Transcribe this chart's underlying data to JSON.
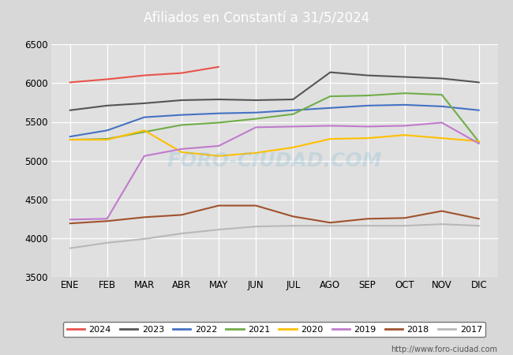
{
  "title": "Afiliados en Constantí a 31/5/2024",
  "title_bg_color": "#4472c4",
  "title_text_color": "white",
  "months": [
    "ENE",
    "FEB",
    "MAR",
    "ABR",
    "MAY",
    "JUN",
    "JUL",
    "AGO",
    "SEP",
    "OCT",
    "NOV",
    "DIC"
  ],
  "ylim": [
    3500,
    6500
  ],
  "yticks": [
    3500,
    4000,
    4500,
    5000,
    5500,
    6000,
    6500
  ],
  "watermark": "http://www.foro-ciudad.com",
  "series": {
    "2024": {
      "color": "#e8534a",
      "data": [
        6010,
        6050,
        6100,
        6130,
        6210,
        null,
        null,
        null,
        null,
        null,
        null,
        null
      ]
    },
    "2023": {
      "color": "#555555",
      "data": [
        5650,
        5710,
        5740,
        5780,
        5790,
        5780,
        5790,
        6140,
        6100,
        6080,
        6060,
        6010
      ]
    },
    "2022": {
      "color": "#4472c4",
      "data": [
        5310,
        5390,
        5560,
        5590,
        5610,
        5620,
        5650,
        5680,
        5710,
        5720,
        5700,
        5650
      ]
    },
    "2021": {
      "color": "#70ad47",
      "data": [
        5270,
        5280,
        5370,
        5460,
        5490,
        5540,
        5600,
        5830,
        5840,
        5870,
        5850,
        5240
      ]
    },
    "2020": {
      "color": "#ffc000",
      "data": [
        5270,
        5270,
        5390,
        5110,
        5060,
        5100,
        5170,
        5280,
        5290,
        5330,
        5290,
        5250
      ]
    },
    "2019": {
      "color": "#c07bcc",
      "data": [
        4240,
        4250,
        5060,
        5150,
        5190,
        5430,
        5440,
        5450,
        5440,
        5450,
        5490,
        5220
      ]
    },
    "2018": {
      "color": "#a0522d",
      "data": [
        4190,
        4220,
        4270,
        4300,
        4420,
        4420,
        4280,
        4200,
        4250,
        4260,
        4350,
        4250
      ]
    },
    "2017": {
      "color": "#b8b8b8",
      "data": [
        3870,
        3940,
        3990,
        4060,
        4110,
        4150,
        4160,
        4160,
        4160,
        4160,
        4180,
        4160
      ]
    }
  },
  "legend_order": [
    "2024",
    "2023",
    "2022",
    "2021",
    "2020",
    "2019",
    "2018",
    "2017"
  ],
  "background_color": "#d8d8d8",
  "plot_bg_color": "#e0e0e0",
  "grid_color": "white"
}
